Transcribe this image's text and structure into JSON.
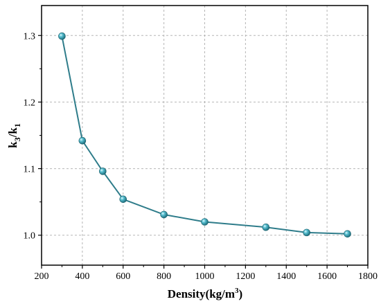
{
  "chart_data": {
    "type": "line",
    "title": "",
    "xlabel": "Density(kg/m",
    "xlabel_sup": "3",
    "xlabel_end": ")",
    "ylabel_k": "k",
    "ylabel_sub1": "3",
    "ylabel_slash": "/k",
    "ylabel_sub2": "1",
    "xlim": [
      200,
      1800
    ],
    "ylim": [
      0.955,
      1.345
    ],
    "xticks": [
      200,
      400,
      600,
      800,
      1000,
      1200,
      1400,
      1600,
      1800
    ],
    "yticks": [
      1.0,
      1.1,
      1.2,
      1.3
    ],
    "ytick_labels": [
      "1.0",
      "1.1",
      "1.2",
      "1.3"
    ],
    "grid": true,
    "legend": "none",
    "series": [
      {
        "x": [
          300,
          400,
          500,
          600,
          800,
          1000,
          1300,
          1500,
          1700
        ],
        "y": [
          1.299,
          1.142,
          1.096,
          1.054,
          1.031,
          1.02,
          1.012,
          1.004,
          1.002
        ],
        "color": "#2e7c8a",
        "marker_color": "#3aa3b6"
      }
    ]
  }
}
